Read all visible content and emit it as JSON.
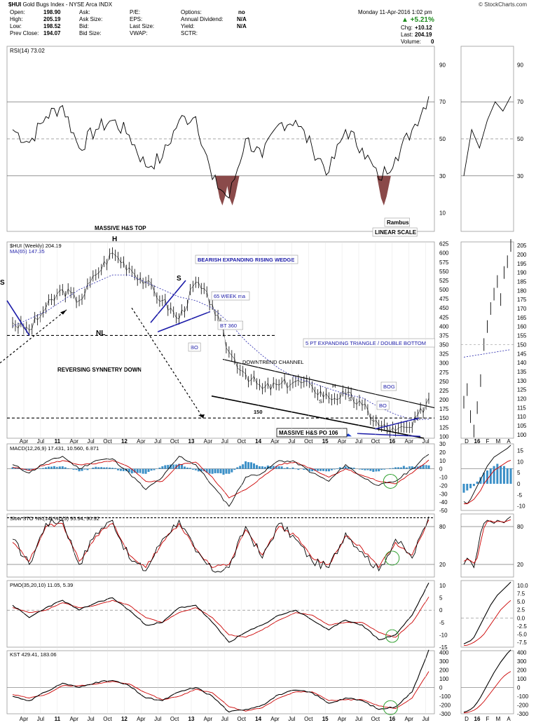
{
  "header": {
    "symbol": "$HUI",
    "name": "Gold Bugs Index",
    "exchange": "NYSE Arca",
    "type": "INDX",
    "date": "Monday  11-Apr-2016  1:02 pm",
    "brand": "© StockCharts.com",
    "fields": {
      "open_label": "Open:",
      "open": "198.90",
      "high_label": "High:",
      "high": "205.19",
      "low_label": "Low:",
      "low": "198.52",
      "prev_label": "Prev Close:",
      "prev": "194.07",
      "ask_label": "Ask:",
      "asksize_label": "Ask Size:",
      "bid_label": "Bid:",
      "bidsize_label": "Bid Size:",
      "pe_label": "P/E:",
      "eps_label": "EPS:",
      "lastsize_label": "Last Size:",
      "vwap_label": "VWAP:",
      "options_label": "Options:",
      "options": "no",
      "div_label": "Annual Dividend:",
      "div": "N/A",
      "yield_label": "Yield:",
      "yield": "N/A",
      "sctr_label": "SCTR:",
      "pct": "▲ +5.21%",
      "chg_label": "Chg:",
      "chg": "+10.12",
      "last_label": "Last:",
      "last": "204.19",
      "vol_label": "Volume:",
      "vol": "0"
    }
  },
  "colors": {
    "price": "#000000",
    "signal": "#cc0000",
    "hist": "#3a8fc7",
    "annot": "#1a1aa8",
    "oversold": "#8a4a4a",
    "green": "#2ea02e",
    "ma": "#2222aa"
  },
  "chart_data": [
    {
      "type": "line",
      "name": "RSI(14)",
      "legend": "RSI(14) 73.02",
      "ylim": [
        0,
        100
      ],
      "yticks": [
        10,
        30,
        50,
        70,
        90
      ],
      "x": [
        "2009-10",
        "2010-04",
        "2010-07",
        "2010-10",
        "2011-01",
        "2011-04",
        "2011-07",
        "2011-10",
        "2012-01",
        "2012-04",
        "2012-07",
        "2012-10",
        "2013-01",
        "2013-04",
        "2013-07",
        "2013-10",
        "2014-01",
        "2014-04",
        "2014-07",
        "2014-10",
        "2015-01",
        "2015-04",
        "2015-07",
        "2015-10",
        "2016-01",
        "2016-04"
      ],
      "values": [
        55,
        48,
        62,
        68,
        45,
        55,
        60,
        52,
        35,
        40,
        60,
        62,
        28,
        18,
        50,
        40,
        58,
        60,
        45,
        32,
        55,
        45,
        28,
        40,
        55,
        73
      ]
    },
    {
      "type": "line",
      "name": "$HUI (Weekly)",
      "legend": "$HUI (Weekly) 204.19",
      "ma_legend": "MA(65) 147.35",
      "scale": "linear",
      "ylim": [
        95,
        630
      ],
      "yticks": [
        100,
        125,
        150,
        175,
        200,
        225,
        250,
        275,
        300,
        325,
        350,
        375,
        400,
        425,
        450,
        475,
        500,
        525,
        550,
        575,
        600,
        625
      ],
      "x": [
        "2010-01",
        "2010-04",
        "2010-07",
        "2010-10",
        "2011-01",
        "2011-04",
        "2011-07",
        "2011-10",
        "2012-01",
        "2012-04",
        "2012-07",
        "2012-10",
        "2013-01",
        "2013-04",
        "2013-07",
        "2013-10",
        "2014-01",
        "2014-04",
        "2014-07",
        "2014-10",
        "2015-01",
        "2015-04",
        "2015-07",
        "2015-10",
        "2016-01",
        "2016-04"
      ],
      "close": [
        410,
        390,
        450,
        500,
        470,
        540,
        600,
        560,
        520,
        470,
        420,
        520,
        460,
        330,
        270,
        230,
        240,
        250,
        235,
        205,
        215,
        185,
        130,
        115,
        125,
        204
      ],
      "ma": [
        400,
        420,
        440,
        470,
        500,
        520,
        540,
        540,
        520,
        500,
        480,
        470,
        450,
        410,
        360,
        320,
        285,
        260,
        245,
        230,
        215,
        205,
        180,
        160,
        145,
        147
      ],
      "annotations": [
        "MASSIVE H&S TOP",
        "H",
        "S",
        "S",
        "NL",
        "REVERSING SYNNETRY DOWN",
        "BEARISH EXPANDING RISING WEDGE",
        "65 WEEK ma",
        "BT 360",
        "BO",
        "DOWNTREND CHANNEL",
        "5 PT EXPANDING TRIANGLE / DOUBLE BOTTOM",
        "H",
        "S",
        "S",
        "BOG",
        "BO",
        "150",
        "MASSIVE H&S PO 106",
        "Rambus",
        "LINEAR SCALE"
      ]
    },
    {
      "type": "line",
      "name": "MACD(12,26,9)",
      "legend": "MACD(12,26,9) 17.431, 10.560, 6.871",
      "ylim": [
        -50,
        30
      ],
      "yticks": [
        -50,
        -40,
        -30,
        -20,
        -10,
        0,
        10,
        20,
        30
      ],
      "macd": [
        5,
        -5,
        8,
        15,
        0,
        10,
        12,
        -5,
        -25,
        -10,
        15,
        5,
        -20,
        -45,
        -10,
        -5,
        10,
        8,
        -5,
        -15,
        5,
        -10,
        -20,
        -15,
        0,
        17.4
      ],
      "signal": [
        2,
        -2,
        5,
        10,
        5,
        6,
        10,
        2,
        -15,
        -15,
        5,
        8,
        -10,
        -35,
        -25,
        -10,
        5,
        8,
        0,
        -10,
        0,
        -8,
        -15,
        -18,
        -5,
        10.6
      ]
    },
    {
      "type": "line",
      "name": "Slow STO %K(14) %D(3)",
      "legend": "Slow STO %K(14) %D(3) 95.94, 90.92",
      "ylim": [
        0,
        100
      ],
      "yticks": [
        20,
        80
      ],
      "k": [
        60,
        20,
        85,
        90,
        20,
        70,
        90,
        30,
        10,
        60,
        90,
        40,
        10,
        15,
        80,
        30,
        85,
        60,
        25,
        15,
        70,
        40,
        10,
        60,
        30,
        95.9
      ],
      "d": [
        55,
        25,
        80,
        85,
        25,
        65,
        85,
        35,
        15,
        55,
        85,
        45,
        15,
        20,
        75,
        35,
        80,
        65,
        30,
        20,
        65,
        45,
        15,
        55,
        35,
        90.9
      ]
    },
    {
      "type": "line",
      "name": "PMO(35,20,10)",
      "legend": "PMO(35,20,10) 11.05, 5.39",
      "ylim": [
        -15,
        12
      ],
      "yticks": [
        -15,
        -10,
        -5,
        0,
        5,
        10
      ],
      "pmo": [
        2,
        -3,
        1,
        4,
        0,
        3,
        5,
        0,
        -6,
        -5,
        1,
        2,
        -5,
        -13,
        -9,
        -6,
        -2,
        0,
        -4,
        -8,
        -4,
        -6,
        -12,
        -10,
        -2,
        11.05
      ],
      "signal": [
        1,
        -1,
        0,
        3,
        1,
        2,
        4,
        2,
        -3,
        -5,
        -1,
        1,
        -3,
        -10,
        -11,
        -8,
        -4,
        -1,
        -2,
        -6,
        -5,
        -5,
        -9,
        -11,
        -5,
        5.39
      ]
    },
    {
      "type": "line",
      "name": "KST",
      "legend": "KST 429.41, 183.06",
      "ylim": [
        -300,
        420
      ],
      "yticks": [
        -300,
        -200,
        -100,
        0,
        100,
        200,
        300,
        400
      ],
      "kst": [
        -100,
        -150,
        -50,
        50,
        0,
        60,
        80,
        20,
        -120,
        -150,
        -50,
        0,
        -100,
        -280,
        -250,
        -200,
        -80,
        -30,
        -60,
        -180,
        -120,
        -150,
        -250,
        -220,
        -50,
        429.41
      ],
      "signal": [
        -80,
        -120,
        -80,
        20,
        20,
        40,
        70,
        40,
        -60,
        -140,
        -100,
        -20,
        -60,
        -220,
        -270,
        -230,
        -120,
        -50,
        -50,
        -150,
        -140,
        -140,
        -210,
        -240,
        -120,
        183.06
      ]
    }
  ],
  "xaxis_main": [
    "Apr",
    "Jul",
    "11",
    "Apr",
    "Jul",
    "Oct",
    "12",
    "Apr",
    "Jul",
    "Oct",
    "13",
    "Apr",
    "Jul",
    "Oct",
    "14",
    "Apr",
    "Jul",
    "Oct",
    "15",
    "Apr",
    "Jul",
    "Oct",
    "16",
    "Apr",
    "Jul"
  ],
  "xaxis_zoom": [
    "D",
    "16",
    "F",
    "M",
    "A"
  ],
  "zoom_prices": [
    {
      "v": "205",
      "y": 0
    },
    {
      "v": "200",
      "y": 0
    },
    {
      "v": "195",
      "y": 0
    },
    {
      "v": "190",
      "y": 0
    },
    {
      "v": "185",
      "y": 0
    },
    {
      "v": "180",
      "y": 0
    },
    {
      "v": "175",
      "y": 0
    },
    {
      "v": "170",
      "y": 0
    },
    {
      "v": "165",
      "y": 0
    },
    {
      "v": "160",
      "y": 0
    },
    {
      "v": "155",
      "y": 0
    },
    {
      "v": "150",
      "y": 0
    },
    {
      "v": "145",
      "y": 0
    },
    {
      "v": "140",
      "y": 0
    },
    {
      "v": "135",
      "y": 0
    },
    {
      "v": "130",
      "y": 0
    },
    {
      "v": "125",
      "y": 0
    },
    {
      "v": "120",
      "y": 0
    },
    {
      "v": "115",
      "y": 0
    },
    {
      "v": "110",
      "y": 0
    },
    {
      "v": "105",
      "y": 0
    },
    {
      "v": "100",
      "y": 0
    }
  ],
  "zoom_axes": {
    "rsi": [
      "90",
      "70",
      "50",
      "30"
    ],
    "macd": [
      "15",
      "10",
      "5",
      "0",
      "-5",
      "-10"
    ],
    "sto": [
      "80",
      "20"
    ],
    "pmo": [
      "10.0",
      "7.5",
      "5.0",
      "2.5",
      "0.0",
      "-2.5",
      "-5.0",
      "-7.5"
    ],
    "kst": [
      "400",
      "300",
      "200",
      "100",
      "0",
      "-100",
      "-200",
      "-300"
    ]
  }
}
